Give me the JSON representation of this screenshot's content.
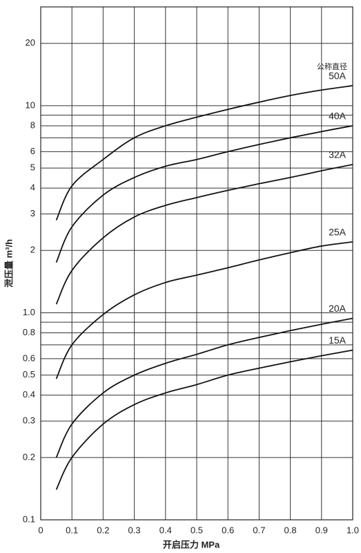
{
  "chart_data": {
    "type": "line",
    "x_label": "开启压力 MPa",
    "y_label": "泄压量 m³/h",
    "legend_title": "公称直径",
    "log_y": true,
    "grid": true,
    "x": [
      0.05,
      0.1,
      0.2,
      0.3,
      0.4,
      0.5,
      0.6,
      0.7,
      0.8,
      0.9,
      1.0
    ],
    "xlim": [
      0,
      1.0
    ],
    "xticks": [
      0,
      0.1,
      0.2,
      0.3,
      0.4,
      0.5,
      0.6,
      0.7,
      0.8,
      0.9,
      {
        "value": 1.0,
        "label": "1.0"
      }
    ],
    "ylim": [
      0.1,
      30
    ],
    "yticks": [
      0.1,
      0.2,
      0.3,
      0.4,
      0.5,
      0.6,
      0.8,
      {
        "value": 1,
        "label": "1.0"
      },
      2,
      3,
      4,
      5,
      6,
      8,
      10,
      20
    ],
    "minor_gridlines": [
      0.7,
      0.9,
      7,
      9
    ],
    "series": [
      {
        "name": "50A",
        "color": "#111111",
        "values": [
          2.8,
          4.1,
          5.5,
          7.0,
          8.0,
          8.8,
          9.6,
          10.4,
          11.2,
          11.9,
          12.5
        ]
      },
      {
        "name": "40A",
        "color": "#111111",
        "values": [
          1.75,
          2.6,
          3.7,
          4.5,
          5.1,
          5.5,
          6.0,
          6.5,
          7.0,
          7.5,
          8.0
        ]
      },
      {
        "name": "32A",
        "color": "#111111",
        "values": [
          1.1,
          1.6,
          2.3,
          2.9,
          3.3,
          3.6,
          3.9,
          4.2,
          4.5,
          4.85,
          5.2
        ]
      },
      {
        "name": "25A",
        "color": "#111111",
        "values": [
          0.48,
          0.7,
          0.98,
          1.22,
          1.4,
          1.52,
          1.65,
          1.8,
          1.95,
          2.1,
          2.2
        ]
      },
      {
        "name": "20A",
        "color": "#111111",
        "values": [
          0.2,
          0.29,
          0.41,
          0.5,
          0.57,
          0.63,
          0.7,
          0.76,
          0.82,
          0.88,
          0.94
        ]
      },
      {
        "name": "15A",
        "color": "#111111",
        "values": [
          0.14,
          0.2,
          0.29,
          0.36,
          0.41,
          0.45,
          0.5,
          0.54,
          0.58,
          0.62,
          0.66
        ]
      }
    ]
  }
}
